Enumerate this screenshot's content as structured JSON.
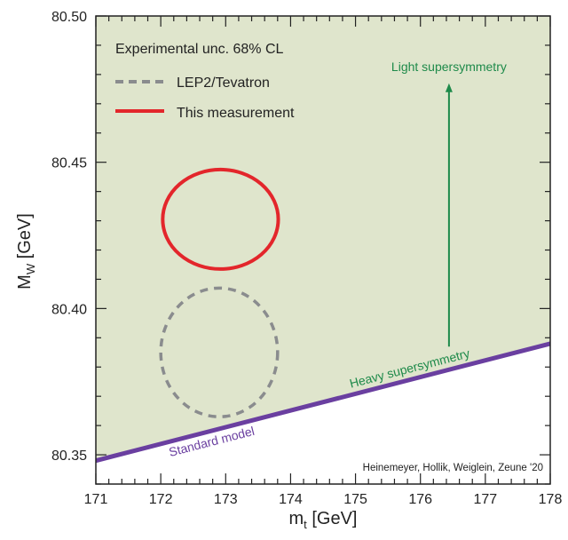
{
  "chart_data": {
    "type": "line",
    "xlabel": "m_t [GeV]",
    "xlabel_main": "m",
    "xlabel_sub": "t",
    "xlabel_unit": " [GeV]",
    "ylabel_main": "M",
    "ylabel_sub": "W",
    "ylabel_unit": " [GeV]",
    "xlim": [
      171,
      178
    ],
    "ylim": [
      80.34,
      80.5
    ],
    "xticks": [
      "171",
      "172",
      "173",
      "174",
      "175",
      "176",
      "177",
      "178"
    ],
    "yticks": [
      "80.35",
      "80.40",
      "80.45",
      "80.50"
    ],
    "legend": {
      "title": "Experimental unc. 68% CL",
      "placement": "top-left",
      "entries": [
        {
          "label": "LEP2/Tevatron",
          "style": "dashed",
          "color": "#8a8c8e"
        },
        {
          "label": "This measurement",
          "style": "solid",
          "color": "#e3262b"
        }
      ]
    },
    "ellipses": [
      {
        "name": "LEP2/Tevatron",
        "center": [
          172.9,
          80.385
        ],
        "half_width": 0.9,
        "half_height": 0.022,
        "color": "#8a8c8e",
        "style": "dashed"
      },
      {
        "name": "This measurement",
        "center": [
          172.92,
          80.4305
        ],
        "half_width": 0.89,
        "half_height": 0.017,
        "color": "#e3262b",
        "style": "solid"
      }
    ],
    "standard_model_line": {
      "label": "Standard model",
      "x": [
        171,
        178
      ],
      "y": [
        80.348,
        80.388
      ],
      "color": "#6a3fa0"
    },
    "arrow": {
      "x": 176.44,
      "y_from": 80.387,
      "y_to": 80.477,
      "color": "#1e8a4a"
    },
    "annotations": {
      "light": "Light supersymmetry",
      "heavy": "Heavy supersymmetry",
      "credit": "Heinemeyer, Hollik, Weiglein, Zeune '20"
    },
    "region_fill": "#dfe5cc",
    "grid": false
  }
}
